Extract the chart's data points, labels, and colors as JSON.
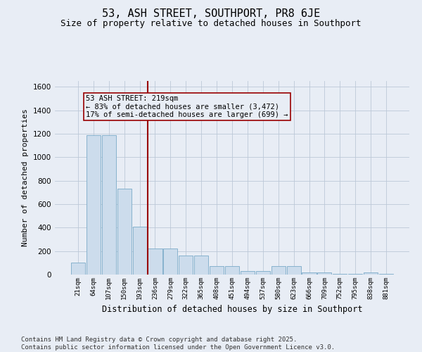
{
  "title": "53, ASH STREET, SOUTHPORT, PR8 6JE",
  "subtitle": "Size of property relative to detached houses in Southport",
  "xlabel": "Distribution of detached houses by size in Southport",
  "ylabel": "Number of detached properties",
  "categories": [
    "21sqm",
    "64sqm",
    "107sqm",
    "150sqm",
    "193sqm",
    "236sqm",
    "279sqm",
    "322sqm",
    "365sqm",
    "408sqm",
    "451sqm",
    "494sqm",
    "537sqm",
    "580sqm",
    "623sqm",
    "666sqm",
    "709sqm",
    "752sqm",
    "795sqm",
    "838sqm",
    "881sqm"
  ],
  "values": [
    100,
    1190,
    1190,
    730,
    410,
    220,
    220,
    160,
    160,
    75,
    75,
    30,
    30,
    75,
    75,
    20,
    20,
    5,
    5,
    20,
    5
  ],
  "bar_color": "#ccdcec",
  "bar_edge_color": "#7aaac8",
  "grid_color": "#bcc8d8",
  "background_color": "#e8edf5",
  "vline_x": 4.5,
  "vline_color": "#990000",
  "annotation_text": "53 ASH STREET: 219sqm\n← 83% of detached houses are smaller (3,472)\n17% of semi-detached houses are larger (699) →",
  "annotation_box_color": "#990000",
  "ylim": [
    0,
    1650
  ],
  "yticks": [
    0,
    200,
    400,
    600,
    800,
    1000,
    1200,
    1400,
    1600
  ],
  "footer": "Contains HM Land Registry data © Crown copyright and database right 2025.\nContains public sector information licensed under the Open Government Licence v3.0.",
  "title_fontsize": 11,
  "subtitle_fontsize": 9,
  "annotation_fontsize": 7.5,
  "footer_fontsize": 6.5,
  "ylabel_fontsize": 8,
  "xlabel_fontsize": 8.5
}
